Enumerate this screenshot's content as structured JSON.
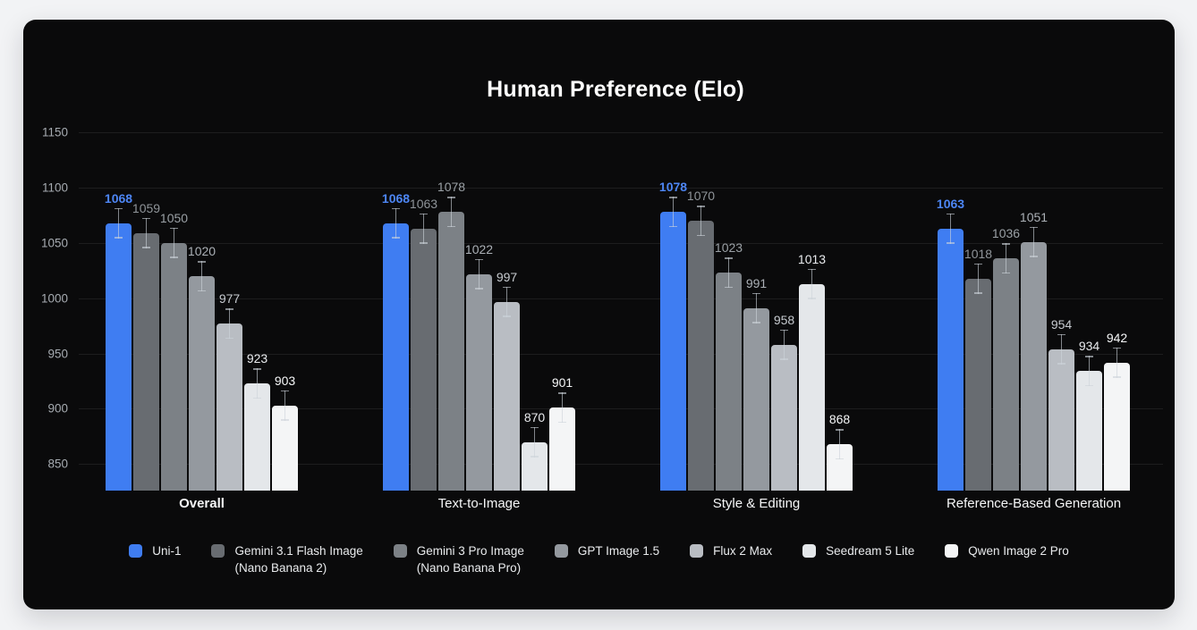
{
  "page": {
    "background_color": "#f2f3f5",
    "card_color": "#0a0a0b",
    "accent_color": "#3f7df2"
  },
  "chart_data": {
    "type": "bar",
    "title": "Human Preference (Elo)",
    "categories": [
      {
        "label": "Overall",
        "emphasized": true
      },
      {
        "label": "Text-to-Image",
        "emphasized": false
      },
      {
        "label": "Style & Editing",
        "emphasized": false
      },
      {
        "label": "Reference-Based Generation",
        "emphasized": false
      }
    ],
    "series": [
      {
        "name": "Uni-1",
        "legend_line2": "",
        "color": "#3f7df2",
        "label_color": "#4d86f5",
        "label_bold": true,
        "values": [
          1068,
          1068,
          1078,
          1063
        ]
      },
      {
        "name": "Gemini 3.1 Flash Image",
        "legend_line2": "(Nano Banana 2)",
        "color": "#686c71",
        "label_color": "#8f9499",
        "label_bold": false,
        "values": [
          1059,
          1063,
          1070,
          1018
        ]
      },
      {
        "name": "Gemini 3 Pro Image",
        "legend_line2": "(Nano Banana Pro)",
        "color": "#7c8186",
        "label_color": "#9aa0a5",
        "label_bold": false,
        "values": [
          1050,
          1078,
          1023,
          1036
        ]
      },
      {
        "name": "GPT Image 1.5",
        "legend_line2": "",
        "color": "#94999f",
        "label_color": "#abb0b6",
        "label_bold": false,
        "values": [
          1020,
          1022,
          991,
          1051
        ]
      },
      {
        "name": "Flux 2 Max",
        "legend_line2": "",
        "color": "#b9bdc3",
        "label_color": "#c6cacf",
        "label_bold": false,
        "values": [
          977,
          997,
          958,
          954
        ]
      },
      {
        "name": "Seedream 5 Lite",
        "legend_line2": "",
        "color": "#e4e7ea",
        "label_color": "#e9ebee",
        "label_bold": false,
        "values": [
          923,
          870,
          1013,
          934
        ]
      },
      {
        "name": "Qwen Image 2 Pro",
        "legend_line2": "",
        "color": "#f4f5f6",
        "label_color": "#f6f7f8",
        "label_bold": false,
        "values": [
          903,
          901,
          868,
          942
        ]
      }
    ],
    "yticks": [
      850,
      900,
      950,
      1000,
      1050,
      1100,
      1150
    ],
    "ylim": [
      826,
      1164
    ],
    "grid": true,
    "error_bars": true,
    "legend_position": "bottom",
    "xlabel": "",
    "ylabel": ""
  }
}
